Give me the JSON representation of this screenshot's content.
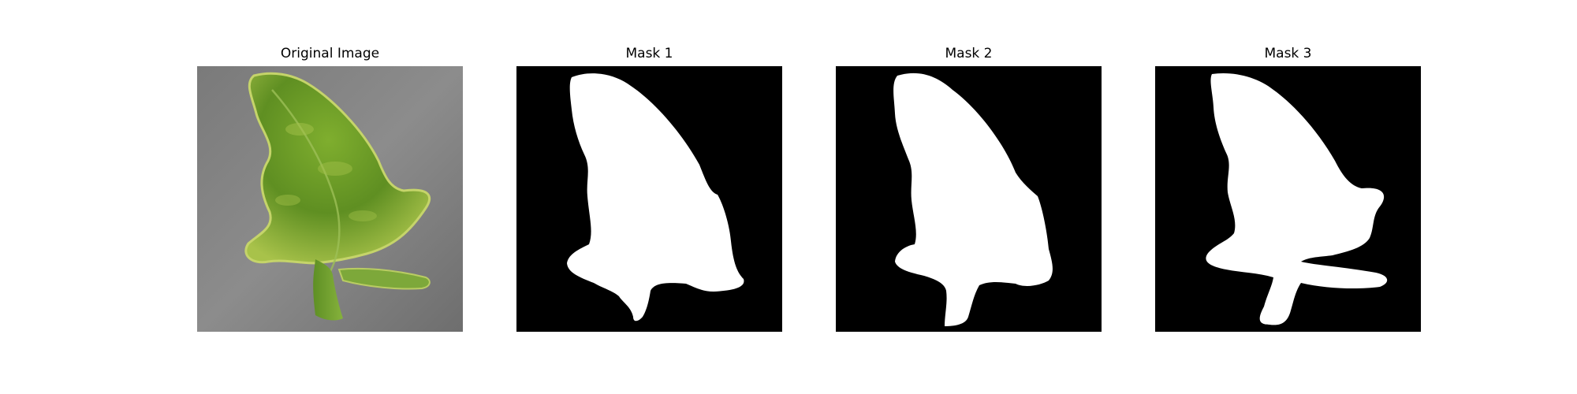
{
  "panels": [
    {
      "title": "Original Image"
    },
    {
      "title": "Mask 1"
    },
    {
      "title": "Mask 2"
    },
    {
      "title": "Mask 3"
    }
  ],
  "colors": {
    "background": "#808080",
    "leaf": "#6b9a2a",
    "mask_bg": "#000000",
    "mask_fg": "#ffffff"
  }
}
